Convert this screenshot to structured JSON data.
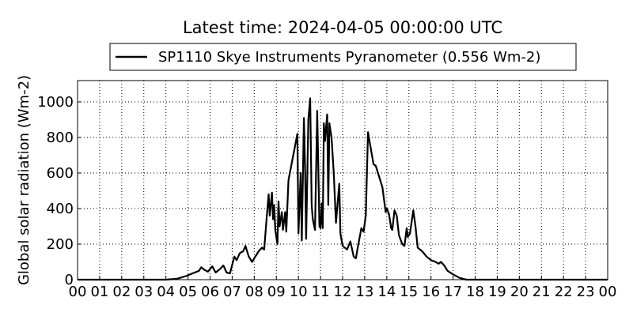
{
  "chart_data": {
    "type": "line",
    "title": "Latest time: 2024-04-05 00:00:00 UTC",
    "y_label": "Global solar radiation (Wm-2)",
    "xlim": [
      0,
      24
    ],
    "ylim": [
      0,
      1120
    ],
    "xticks": [
      {
        "value": 0,
        "label": "00"
      },
      {
        "value": 1,
        "label": "01"
      },
      {
        "value": 2,
        "label": "02"
      },
      {
        "value": 3,
        "label": "03"
      },
      {
        "value": 4,
        "label": "04"
      },
      {
        "value": 5,
        "label": "05"
      },
      {
        "value": 6,
        "label": "06"
      },
      {
        "value": 7,
        "label": "07"
      },
      {
        "value": 8,
        "label": "08"
      },
      {
        "value": 9,
        "label": "09"
      },
      {
        "value": 10,
        "label": "10"
      },
      {
        "value": 11,
        "label": "11"
      },
      {
        "value": 12,
        "label": "12"
      },
      {
        "value": 13,
        "label": "13"
      },
      {
        "value": 14,
        "label": "14"
      },
      {
        "value": 15,
        "label": "15"
      },
      {
        "value": 16,
        "label": "16"
      },
      {
        "value": 17,
        "label": "17"
      },
      {
        "value": 18,
        "label": "18"
      },
      {
        "value": 19,
        "label": "19"
      },
      {
        "value": 20,
        "label": "20"
      },
      {
        "value": 21,
        "label": "21"
      },
      {
        "value": 22,
        "label": "22"
      },
      {
        "value": 23,
        "label": "23"
      },
      {
        "value": 24,
        "label": "00"
      }
    ],
    "yticks": [
      0,
      200,
      400,
      600,
      800,
      1000
    ],
    "grid": true,
    "x": [
      0,
      4.0,
      4.5,
      4.9,
      5.2,
      5.5,
      5.6,
      5.75,
      5.9,
      6.1,
      6.25,
      6.45,
      6.6,
      6.75,
      6.9,
      7.1,
      7.2,
      7.35,
      7.5,
      7.6,
      7.75,
      7.9,
      8.05,
      8.2,
      8.35,
      8.45,
      8.55,
      8.65,
      8.7,
      8.8,
      8.85,
      8.9,
      8.95,
      9.05,
      9.1,
      9.15,
      9.25,
      9.3,
      9.4,
      9.45,
      9.55,
      9.95,
      10.0,
      10.1,
      10.15,
      10.25,
      10.3,
      10.35,
      10.45,
      10.53,
      10.6,
      10.65,
      10.75,
      10.85,
      10.95,
      11.0,
      11.05,
      11.1,
      11.15,
      11.2,
      11.3,
      11.35,
      11.4,
      11.5,
      11.6,
      11.7,
      11.85,
      11.9,
      12.0,
      12.2,
      12.35,
      12.5,
      12.6,
      12.7,
      12.85,
      12.95,
      13.05,
      13.15,
      13.3,
      13.4,
      13.5,
      13.6,
      13.7,
      13.8,
      13.95,
      14.0,
      14.1,
      14.2,
      14.25,
      14.35,
      14.45,
      14.55,
      14.7,
      14.8,
      14.9,
      14.95,
      15.05,
      15.2,
      15.3,
      15.4,
      15.6,
      15.8,
      16.0,
      16.2,
      16.35,
      16.45,
      16.6,
      16.75,
      17.0,
      17.3,
      17.6,
      24
    ],
    "series": [
      {
        "name": "SP1110 Skye Instruments Pyranometer (0.556 Wm-2)",
        "color": "#000000",
        "values": [
          0,
          0,
          5,
          20,
          35,
          50,
          70,
          55,
          45,
          75,
          40,
          60,
          80,
          40,
          35,
          130,
          110,
          150,
          160,
          190,
          130,
          100,
          130,
          160,
          180,
          170,
          330,
          480,
          360,
          490,
          340,
          420,
          280,
          200,
          440,
          300,
          380,
          280,
          380,
          270,
          560,
          820,
          260,
          600,
          220,
          910,
          640,
          230,
          900,
          1020,
          420,
          340,
          280,
          950,
          300,
          290,
          430,
          290,
          880,
          780,
          930,
          420,
          880,
          800,
          600,
          320,
          540,
          260,
          190,
          170,
          215,
          130,
          120,
          190,
          290,
          270,
          360,
          830,
          720,
          650,
          640,
          600,
          560,
          520,
          380,
          400,
          370,
          290,
          280,
          390,
          360,
          250,
          200,
          190,
          290,
          240,
          260,
          390,
          300,
          180,
          160,
          130,
          110,
          100,
          90,
          100,
          80,
          50,
          30,
          10,
          0,
          0
        ]
      }
    ],
    "legend": "top-center"
  }
}
